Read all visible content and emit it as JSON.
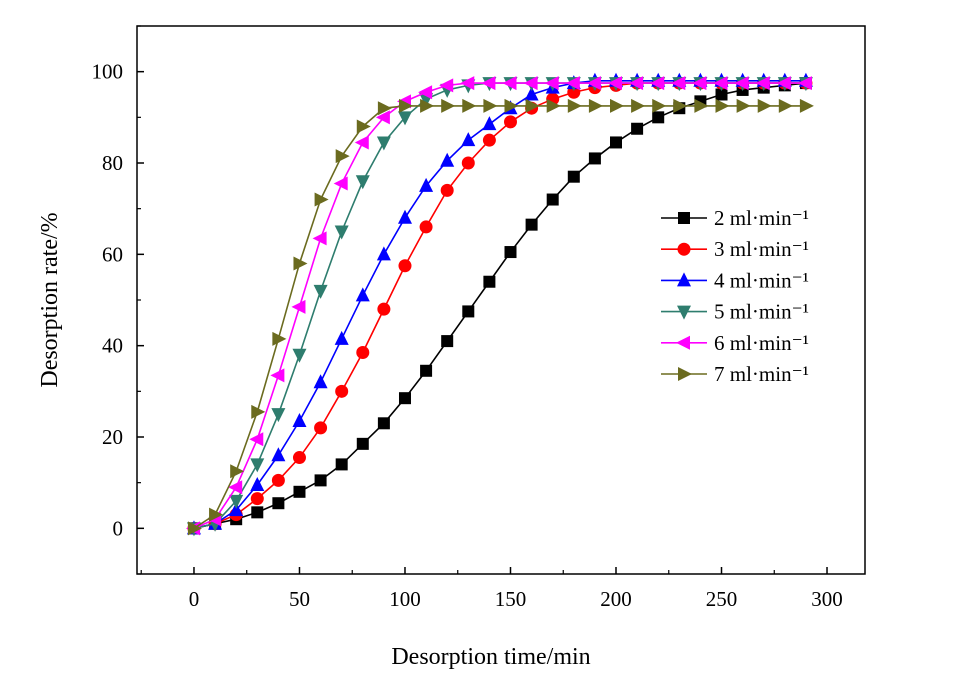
{
  "chart_data": {
    "type": "line",
    "title": "",
    "xlabel": "Desorption time/min",
    "ylabel": "Desorption rate/%",
    "xlim": [
      -27,
      318
    ],
    "ylim": [
      -10,
      110
    ],
    "xticks": [
      0,
      50,
      100,
      150,
      200,
      250,
      300
    ],
    "yticks": [
      0,
      20,
      40,
      60,
      80,
      100
    ],
    "grid": false,
    "legend_position": "right",
    "series": [
      {
        "name": "2 ml·min⁻¹",
        "marker": "square",
        "color": "#000000",
        "x": [
          0,
          10,
          20,
          30,
          40,
          50,
          60,
          70,
          80,
          90,
          100,
          110,
          120,
          130,
          140,
          150,
          160,
          170,
          180,
          190,
          200,
          210,
          220,
          230,
          240,
          250,
          260,
          270,
          280,
          290
        ],
        "y": [
          0,
          1,
          2,
          3.5,
          5.5,
          8,
          10.5,
          14,
          18.5,
          23,
          28.5,
          34.5,
          41,
          47.5,
          54,
          60.5,
          66.5,
          72,
          77,
          81,
          84.5,
          87.5,
          90,
          92,
          93.5,
          95,
          96,
          96.5,
          97,
          97.5
        ]
      },
      {
        "name": "3 ml·min⁻¹",
        "marker": "circle",
        "color": "#ff0000",
        "x": [
          0,
          10,
          20,
          30,
          40,
          50,
          60,
          70,
          80,
          90,
          100,
          110,
          120,
          130,
          140,
          150,
          160,
          170,
          180,
          190,
          200,
          210,
          220,
          230,
          240,
          250,
          260,
          270,
          280,
          290
        ],
        "y": [
          0,
          1,
          3,
          6.5,
          10.5,
          15.5,
          22,
          30,
          38.5,
          48,
          57.5,
          66,
          74,
          80,
          85,
          89,
          92,
          94,
          95.5,
          96.5,
          97,
          97.5,
          97.5,
          97.5,
          97.5,
          97.5,
          97.5,
          97.5,
          97.5,
          97.5
        ]
      },
      {
        "name": "4 ml·min⁻¹",
        "marker": "triangle-up",
        "color": "#0000ff",
        "x": [
          0,
          10,
          20,
          30,
          40,
          50,
          60,
          70,
          80,
          90,
          100,
          110,
          120,
          130,
          140,
          150,
          160,
          170,
          180,
          190,
          200,
          210,
          220,
          230,
          240,
          250,
          260,
          270,
          280,
          290
        ],
        "y": [
          0,
          1,
          4,
          9.5,
          16,
          23.5,
          32,
          41.5,
          51,
          60,
          68,
          75,
          80.5,
          85,
          88.5,
          92,
          95,
          96.5,
          97.5,
          98,
          98,
          98,
          98,
          98,
          98,
          98,
          98,
          98,
          98,
          98
        ]
      },
      {
        "name": "5 ml·min⁻¹",
        "marker": "triangle-down",
        "color": "#2e7d6e",
        "x": [
          0,
          10,
          20,
          30,
          40,
          50,
          60,
          70,
          80,
          90,
          100,
          110,
          120,
          130,
          140,
          150,
          160,
          170,
          180,
          190,
          200,
          210,
          220,
          230,
          240,
          250,
          260,
          270,
          280,
          290
        ],
        "y": [
          0,
          1,
          6,
          14,
          25,
          38,
          52,
          65,
          76,
          84.5,
          90,
          94,
          96,
          97,
          97.5,
          97.5,
          97.5,
          97.5,
          97.5,
          97.5,
          97.5,
          97.5,
          97.5,
          97.5,
          97.5,
          97.5,
          97.5,
          97.5,
          97.5,
          97.5
        ]
      },
      {
        "name": "6 ml·min⁻¹",
        "marker": "triangle-left",
        "color": "#ff00ff",
        "x": [
          0,
          10,
          20,
          30,
          40,
          50,
          60,
          70,
          80,
          90,
          100,
          110,
          120,
          130,
          140,
          150,
          160,
          170,
          180,
          190,
          200,
          210,
          220,
          230,
          240,
          250,
          260,
          270,
          280,
          290
        ],
        "y": [
          0,
          2,
          9,
          19.5,
          33.5,
          48.5,
          63.5,
          75.5,
          84.5,
          90,
          93.5,
          95.5,
          97,
          97.5,
          97.5,
          97.5,
          97.5,
          97.5,
          97.5,
          97.5,
          97.5,
          97.5,
          97.5,
          97.5,
          97.5,
          97.5,
          97.5,
          97.5,
          97.5,
          97.5
        ]
      },
      {
        "name": "7 ml·min⁻¹",
        "marker": "triangle-right",
        "color": "#6b6b1f",
        "x": [
          0,
          10,
          20,
          30,
          40,
          50,
          60,
          70,
          80,
          90,
          100,
          110,
          120,
          130,
          140,
          150,
          160,
          170,
          180,
          190,
          200,
          210,
          220,
          230,
          240,
          250,
          260,
          270,
          280,
          290
        ],
        "y": [
          0,
          3,
          12.5,
          25.5,
          41.5,
          58,
          72,
          81.5,
          88,
          92,
          92.5,
          92.5,
          92.5,
          92.5,
          92.5,
          92.5,
          92.5,
          92.5,
          92.5,
          92.5,
          92.5,
          92.5,
          92.5,
          92.5,
          92.5,
          92.5,
          92.5,
          92.5,
          92.5,
          92.5
        ]
      }
    ]
  }
}
